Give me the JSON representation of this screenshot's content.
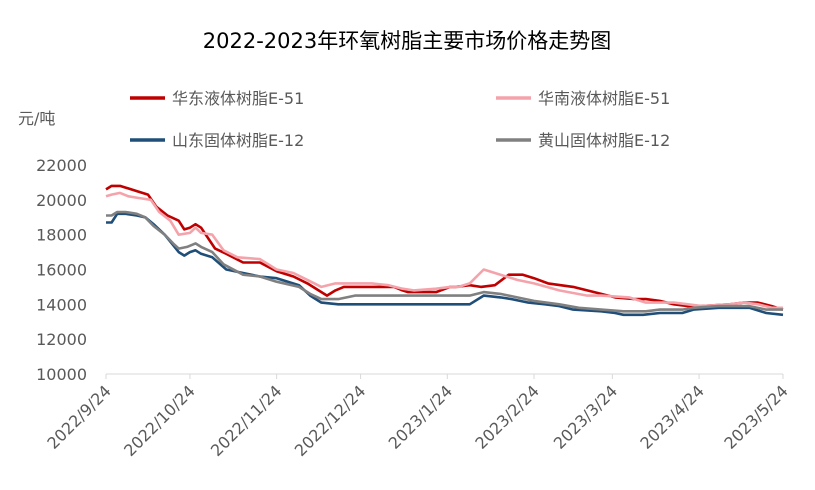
{
  "chart_data": {
    "type": "line",
    "title": "2022-2023年环氧树脂主要市场价格走势图",
    "unit_label": "元/吨",
    "ylim": [
      10000,
      22000
    ],
    "y_ticks": [
      10000,
      12000,
      14000,
      16000,
      18000,
      20000,
      22000
    ],
    "x_tick_labels": [
      "2022/9/24",
      "2022/10/24",
      "2022/11/24",
      "2022/12/24",
      "2023/1/24",
      "2023/2/24",
      "2023/3/24",
      "2023/4/24",
      "2023/5/24"
    ],
    "x_tick_dates": [
      "2022-09-24",
      "2022-10-24",
      "2022-11-24",
      "2022-12-24",
      "2023-01-24",
      "2023-02-24",
      "2023-03-24",
      "2023-04-24",
      "2023-05-24"
    ],
    "grid": false,
    "legend_position": "top",
    "series": [
      {
        "name": "华东液体树脂E-51",
        "color": "#c00000",
        "x": [
          "2022-09-24",
          "2022-09-26",
          "2022-09-29",
          "2022-10-01",
          "2022-10-05",
          "2022-10-09",
          "2022-10-12",
          "2022-10-16",
          "2022-10-20",
          "2022-10-22",
          "2022-10-24",
          "2022-10-26",
          "2022-10-28",
          "2022-11-02",
          "2022-11-06",
          "2022-11-12",
          "2022-11-18",
          "2022-11-24",
          "2022-11-30",
          "2022-12-05",
          "2022-12-10",
          "2022-12-12",
          "2022-12-15",
          "2022-12-18",
          "2022-12-22",
          "2023-01-01",
          "2023-01-05",
          "2023-01-08",
          "2023-01-10",
          "2023-01-20",
          "2023-01-25",
          "2023-01-27",
          "2023-02-01",
          "2023-02-05",
          "2023-02-10",
          "2023-02-15",
          "2023-02-20",
          "2023-02-24",
          "2023-03-01",
          "2023-03-10",
          "2023-03-15",
          "2023-03-20",
          "2023-03-25",
          "2023-04-01",
          "2023-04-05",
          "2023-04-10",
          "2023-04-15",
          "2023-04-20",
          "2023-04-25",
          "2023-05-05",
          "2023-05-10",
          "2023-05-15",
          "2023-05-20",
          "2023-05-24"
        ],
        "y": [
          20600,
          20800,
          20800,
          20700,
          20500,
          20300,
          19600,
          19100,
          18800,
          18300,
          18400,
          18600,
          18400,
          17200,
          16900,
          16400,
          16400,
          15900,
          15600,
          15200,
          14700,
          14500,
          14800,
          15000,
          15000,
          15000,
          15000,
          14800,
          14700,
          14700,
          15000,
          15000,
          15100,
          15000,
          15100,
          15700,
          15700,
          15500,
          15200,
          15000,
          14800,
          14600,
          14400,
          14300,
          14300,
          14200,
          14000,
          13900,
          13900,
          14000,
          14100,
          14100,
          13900,
          13700
        ],
        "end": "2023-05-24"
      },
      {
        "name": "华南液体树脂E-51",
        "color": "#f4a3ab",
        "x": [
          "2022-09-24",
          "2022-09-26",
          "2022-09-29",
          "2022-10-02",
          "2022-10-06",
          "2022-10-10",
          "2022-10-13",
          "2022-10-17",
          "2022-10-20",
          "2022-10-24",
          "2022-10-26",
          "2022-10-28",
          "2022-11-01",
          "2022-11-05",
          "2022-11-10",
          "2022-11-18",
          "2022-11-24",
          "2022-11-30",
          "2022-12-05",
          "2022-12-10",
          "2022-12-15",
          "2022-12-20",
          "2022-12-28",
          "2023-01-03",
          "2023-01-08",
          "2023-01-12",
          "2023-01-20",
          "2023-01-25",
          "2023-01-28",
          "2023-02-01",
          "2023-02-06",
          "2023-02-12",
          "2023-02-18",
          "2023-02-24",
          "2023-03-05",
          "2023-03-15",
          "2023-03-20",
          "2023-03-30",
          "2023-04-05",
          "2023-04-10",
          "2023-04-15",
          "2023-04-20",
          "2023-04-25",
          "2023-05-05",
          "2023-05-10",
          "2023-05-15",
          "2023-05-20",
          "2023-05-24"
        ],
        "y": [
          20200,
          20300,
          20400,
          20200,
          20100,
          20000,
          19300,
          18800,
          18000,
          18100,
          18400,
          18100,
          18000,
          17100,
          16700,
          16600,
          16000,
          15800,
          15400,
          15000,
          15200,
          15200,
          15200,
          15100,
          14900,
          14800,
          14900,
          15000,
          15000,
          15200,
          16000,
          15700,
          15400,
          15200,
          14800,
          14500,
          14500,
          14400,
          14100,
          14100,
          14100,
          14000,
          13900,
          14000,
          14100,
          14000,
          13800,
          13800
        ],
        "end": "2023-05-24"
      },
      {
        "name": "山东固体树脂E-12",
        "color": "#1f4e79",
        "x": [
          "2022-09-24",
          "2022-09-26",
          "2022-09-28",
          "2022-10-01",
          "2022-10-05",
          "2022-10-08",
          "2022-10-11",
          "2022-10-15",
          "2022-10-18",
          "2022-10-20",
          "2022-10-22",
          "2022-10-24",
          "2022-10-26",
          "2022-10-28",
          "2022-11-01",
          "2022-11-06",
          "2022-11-12",
          "2022-11-18",
          "2022-11-24",
          "2022-12-02",
          "2022-12-06",
          "2022-12-10",
          "2022-12-16",
          "2023-01-08",
          "2023-01-28",
          "2023-02-01",
          "2023-02-06",
          "2023-02-12",
          "2023-02-16",
          "2023-02-22",
          "2023-02-28",
          "2023-03-05",
          "2023-03-10",
          "2023-03-20",
          "2023-03-25",
          "2023-03-28",
          "2023-04-04",
          "2023-04-10",
          "2023-04-18",
          "2023-04-22",
          "2023-05-01",
          "2023-05-12",
          "2023-05-18",
          "2023-05-24"
        ],
        "y": [
          18700,
          18700,
          19200,
          19200,
          19100,
          19000,
          18600,
          18000,
          17400,
          17000,
          16800,
          17000,
          17100,
          16900,
          16700,
          16000,
          15800,
          15600,
          15500,
          15100,
          14500,
          14100,
          14000,
          14000,
          14000,
          14000,
          14500,
          14400,
          14300,
          14100,
          14000,
          13900,
          13700,
          13600,
          13500,
          13400,
          13400,
          13500,
          13500,
          13700,
          13800,
          13800,
          13500,
          13400
        ],
        "end": "2023-05-24"
      },
      {
        "name": "黄山固体树脂E-12",
        "color": "#808080",
        "x": [
          "2022-09-24",
          "2022-09-26",
          "2022-09-28",
          "2022-10-01",
          "2022-10-05",
          "2022-10-08",
          "2022-10-11",
          "2022-10-15",
          "2022-10-18",
          "2022-10-20",
          "2022-10-23",
          "2022-10-26",
          "2022-10-28",
          "2022-11-01",
          "2022-11-05",
          "2022-11-12",
          "2022-11-18",
          "2022-11-24",
          "2022-12-02",
          "2022-12-06",
          "2022-12-10",
          "2022-12-16",
          "2022-12-22",
          "2023-01-05",
          "2023-01-10",
          "2023-01-28",
          "2023-02-01",
          "2023-02-06",
          "2023-02-12",
          "2023-02-18",
          "2023-02-24",
          "2023-03-05",
          "2023-03-12",
          "2023-03-20",
          "2023-03-28",
          "2023-04-05",
          "2023-04-10",
          "2023-04-18",
          "2023-04-22",
          "2023-05-01",
          "2023-05-12",
          "2023-05-18",
          "2023-05-24"
        ],
        "y": [
          19100,
          19100,
          19300,
          19300,
          19200,
          19000,
          18500,
          18000,
          17500,
          17200,
          17300,
          17500,
          17300,
          17000,
          16300,
          15700,
          15600,
          15300,
          15000,
          14600,
          14300,
          14300,
          14500,
          14500,
          14500,
          14500,
          14500,
          14700,
          14600,
          14400,
          14200,
          14000,
          13800,
          13700,
          13600,
          13600,
          13700,
          13700,
          13800,
          13900,
          13900,
          13700,
          13700
        ],
        "end": "2023-05-24"
      }
    ]
  }
}
